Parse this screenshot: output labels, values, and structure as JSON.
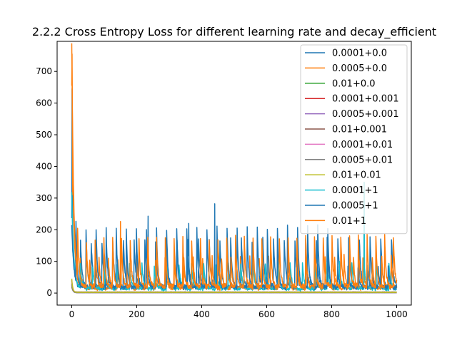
{
  "chart_data": {
    "type": "line",
    "title": "2.2.2 Cross Entropy Loss for different learning rate and decay_efficient",
    "xlabel": "",
    "ylabel": "",
    "xlim": [
      -45,
      1045
    ],
    "ylim": [
      -38,
      795
    ],
    "xticks": [
      0,
      200,
      400,
      600,
      800,
      1000
    ],
    "yticks": [
      0,
      100,
      200,
      300,
      400,
      500,
      600,
      700
    ],
    "grid": false,
    "legend_position": "upper right",
    "series": [
      {
        "name": "0.0001+0.0",
        "color": "#1f77b4",
        "kind": "noisy",
        "base": 20,
        "peak": 155,
        "period": 33,
        "phase": 6,
        "decay": 5,
        "start": 180,
        "seed": 11
      },
      {
        "name": "0.0005+0.0",
        "color": "#ff7f0e",
        "kind": "noisy",
        "base": 18,
        "peak": 140,
        "period": 29,
        "phase": 3,
        "decay": 4,
        "start": 600,
        "seed": 23
      },
      {
        "name": "0.01+0.0",
        "color": "#2ca02c",
        "kind": "flat",
        "level": 1.5,
        "start": 30
      },
      {
        "name": "0.0001+0.001",
        "color": "#d62728",
        "kind": "flat",
        "level": 2.5,
        "start": 40
      },
      {
        "name": "0.0005+0.001",
        "color": "#9467bd",
        "kind": "flat",
        "level": 1.0,
        "start": 25
      },
      {
        "name": "0.01+0.001",
        "color": "#8c564b",
        "kind": "flat",
        "level": 3.0,
        "start": 20
      },
      {
        "name": "0.0001+0.01",
        "color": "#e377c2",
        "kind": "flat",
        "level": 1.2,
        "start": 35
      },
      {
        "name": "0.0005+0.01",
        "color": "#7f7f7f",
        "kind": "flat",
        "level": 0.8,
        "start": 28
      },
      {
        "name": "0.01+0.01",
        "color": "#bcbd22",
        "kind": "flat",
        "level": 2.0,
        "start": 45
      },
      {
        "name": "0.0001+1",
        "color": "#17becf",
        "kind": "noisy",
        "base": 15,
        "peak": 170,
        "period": 38,
        "phase": 12,
        "decay": 5,
        "start": 300,
        "seed": 37
      },
      {
        "name": "0.0005+1",
        "color": "#1f77b4",
        "kind": "noisy",
        "base": 22,
        "peak": 175,
        "period": 31,
        "phase": 18,
        "decay": 4,
        "start": 200,
        "seed": 53
      },
      {
        "name": "0.01+1",
        "color": "#ff7f0e",
        "kind": "noisy",
        "base": 25,
        "peak": 150,
        "period": 27,
        "phase": 9,
        "decay": 4,
        "start": 755,
        "seed": 71
      }
    ],
    "notable_peaks": [
      {
        "x": 440,
        "y": 282
      },
      {
        "x": 900,
        "y": 350
      },
      {
        "x": 235,
        "y": 243
      },
      {
        "x": 150,
        "y": 226
      },
      {
        "x": 360,
        "y": 220
      }
    ]
  }
}
